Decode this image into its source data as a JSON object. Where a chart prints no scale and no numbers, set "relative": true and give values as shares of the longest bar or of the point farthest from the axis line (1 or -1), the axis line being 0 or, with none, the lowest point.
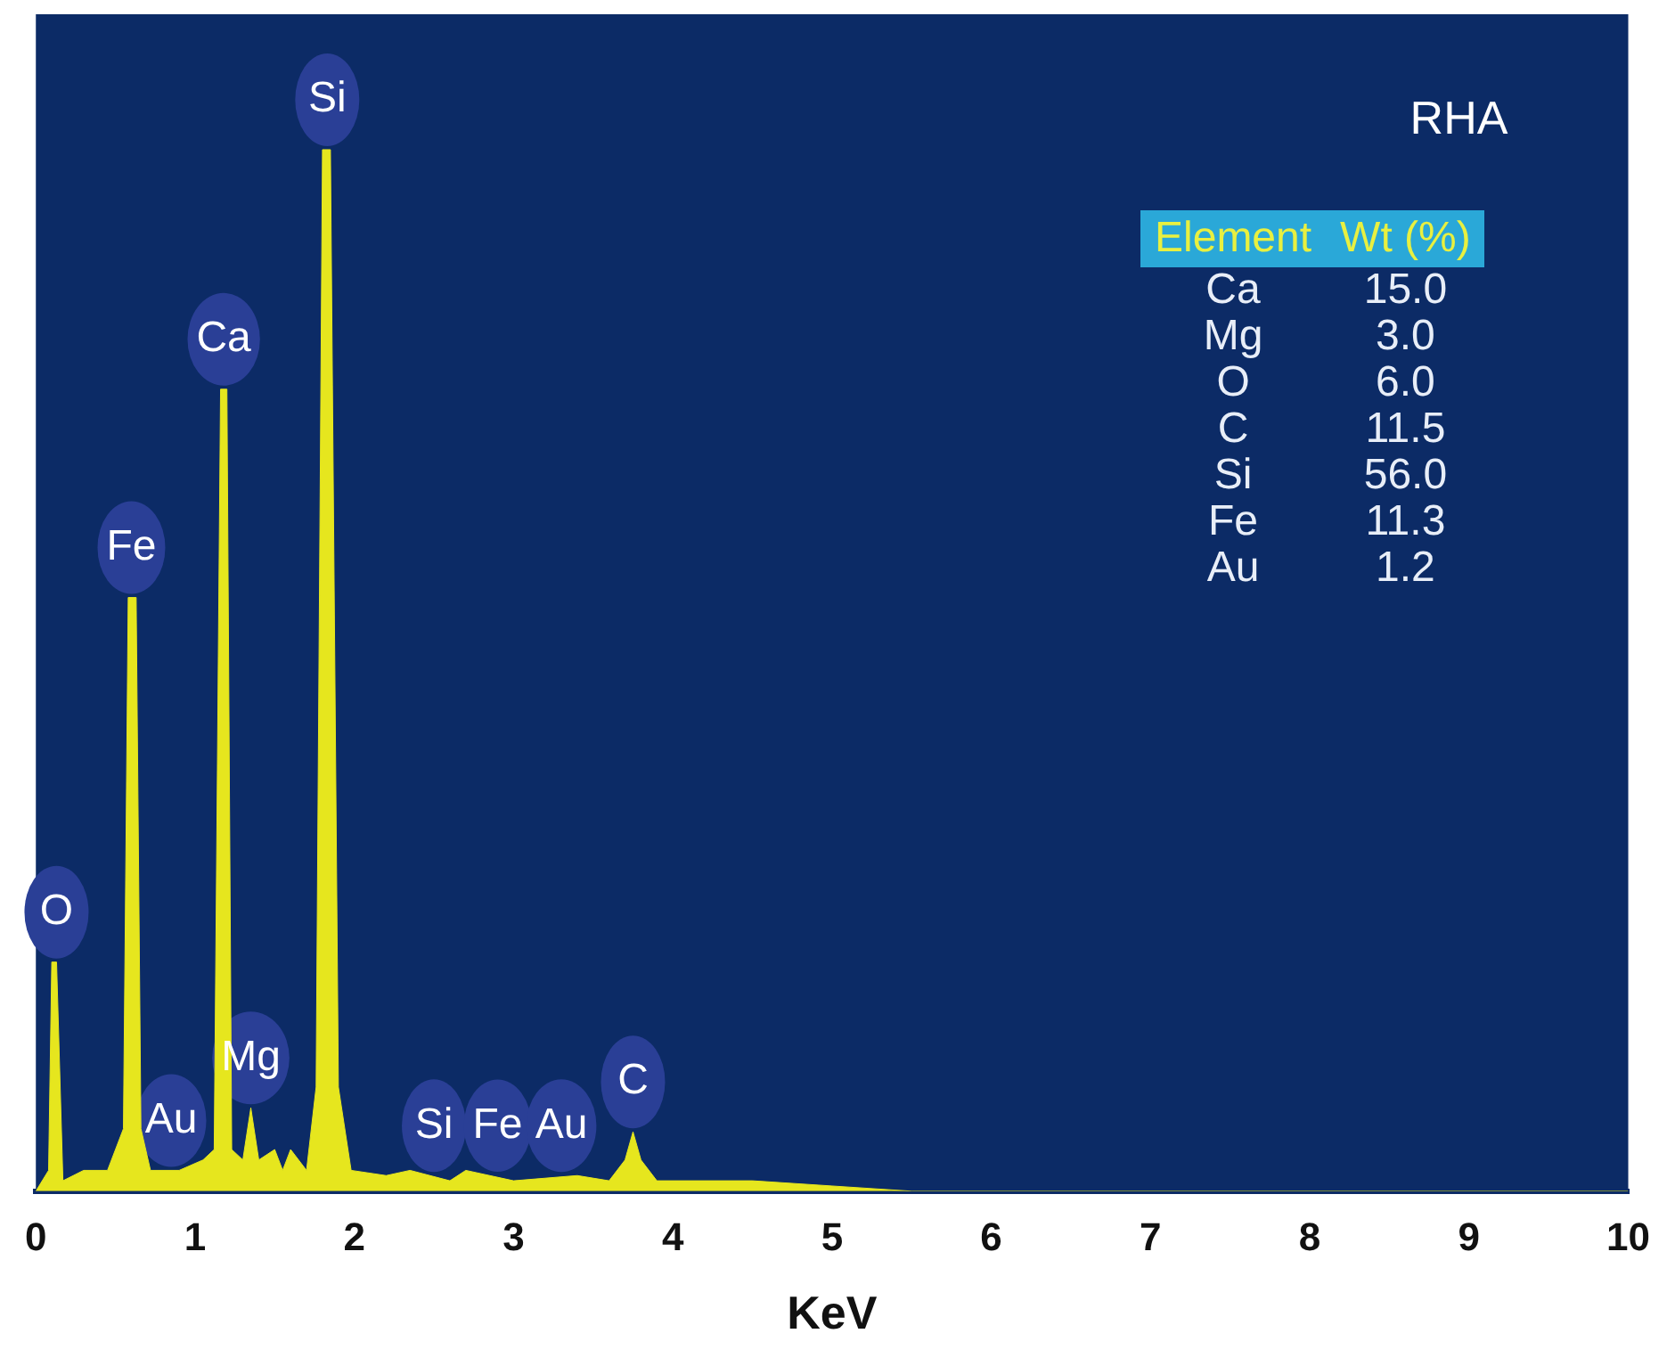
{
  "chart_data": {
    "type": "area",
    "title": "RHA",
    "xlabel": "KeV",
    "relative": true,
    "xlim": [
      0,
      10
    ],
    "xticks": [
      0,
      1,
      2,
      3,
      4,
      5,
      6,
      7,
      8,
      9,
      10
    ],
    "grid": false,
    "legend": false,
    "series": [
      {
        "color": "#e6e61e",
        "x": [
          0,
          0.08,
          0.1,
          0.13,
          0.17,
          0.3,
          0.45,
          0.55,
          0.58,
          0.63,
          0.66,
          0.72,
          0.9,
          1.05,
          1.12,
          1.16,
          1.2,
          1.23,
          1.3,
          1.35,
          1.4,
          1.5,
          1.55,
          1.6,
          1.7,
          1.76,
          1.8,
          1.85,
          1.9,
          1.98,
          2.2,
          2.35,
          2.6,
          2.7,
          3.0,
          3.4,
          3.6,
          3.7,
          3.75,
          3.8,
          3.9,
          4.5,
          5.0,
          5.5,
          10
        ],
        "values": [
          0,
          0.02,
          0.22,
          0.22,
          0.01,
          0.02,
          0.02,
          0.06,
          0.57,
          0.57,
          0.06,
          0.02,
          0.02,
          0.03,
          0.04,
          0.77,
          0.77,
          0.04,
          0.03,
          0.08,
          0.03,
          0.04,
          0.02,
          0.04,
          0.02,
          0.1,
          1,
          1,
          0.1,
          0.02,
          0.015,
          0.02,
          0.01,
          0.02,
          0.01,
          0.015,
          0.01,
          0.03,
          0.057,
          0.03,
          0.01,
          0.01,
          0.005,
          0,
          0
        ]
      }
    ],
    "annotations": [
      {
        "text": "O",
        "x": 0.13,
        "y": 0.22
      },
      {
        "text": "Fe",
        "x": 0.6,
        "y": 0.57
      },
      {
        "text": "Au",
        "x": 0.85,
        "y": 0.02
      },
      {
        "text": "Ca",
        "x": 1.18,
        "y": 0.77
      },
      {
        "text": "Mg",
        "x": 1.35,
        "y": 0.08
      },
      {
        "text": "Si",
        "x": 1.83,
        "y": 1
      },
      {
        "text": "Si",
        "x": 2.5,
        "y": 0.015
      },
      {
        "text": "Fe",
        "x": 2.9,
        "y": 0.015
      },
      {
        "text": "Au",
        "x": 3.3,
        "y": 0.015
      },
      {
        "text": "C",
        "x": 3.75,
        "y": 0.057
      },
      "Element",
      "Wt (%)",
      "Ca",
      "15.0",
      "Mg",
      "3.0",
      "O",
      "6.0",
      "C",
      "11.5",
      "Si",
      "56.0",
      "Fe",
      "11.3",
      "Au",
      "1.2"
    ]
  }
}
